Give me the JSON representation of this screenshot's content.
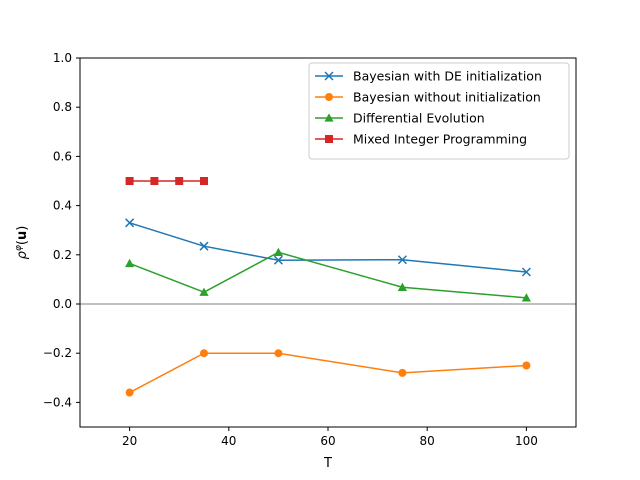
{
  "chart_data": {
    "type": "line",
    "title": "",
    "xlabel": "T",
    "ylabel_prefix": "ρ",
    "ylabel_sup": "φ",
    "ylabel_open": "(",
    "ylabel_bold": "u",
    "ylabel_close": ")",
    "xlim": [
      10,
      110
    ],
    "ylim": [
      -0.5,
      1.0
    ],
    "xticks": [
      20,
      40,
      60,
      80,
      100
    ],
    "xtick_labels": [
      "20",
      "40",
      "60",
      "80",
      "100"
    ],
    "yticks": [
      -0.4,
      -0.2,
      0.0,
      0.2,
      0.4,
      0.6,
      0.8,
      1.0
    ],
    "ytick_labels": [
      "−0.4",
      "−0.2",
      "0.0",
      "0.2",
      "0.4",
      "0.6",
      "0.8",
      "1.0"
    ],
    "reference_line_y": 0.0,
    "grid": false,
    "legend_position": "top-right",
    "series": [
      {
        "name": "Bayesian with DE initialization",
        "color": "#1f77b4",
        "marker": "x",
        "x": [
          20,
          35,
          50,
          75,
          100
        ],
        "y": [
          0.33,
          0.235,
          0.178,
          0.18,
          0.13
        ]
      },
      {
        "name": "Bayesian without initialization",
        "color": "#ff7f0e",
        "marker": "circle",
        "x": [
          20,
          35,
          50,
          75,
          100
        ],
        "y": [
          -0.36,
          -0.2,
          -0.2,
          -0.28,
          -0.25
        ]
      },
      {
        "name": "Differential Evolution",
        "color": "#2ca02c",
        "marker": "triangle",
        "x": [
          20,
          35,
          50,
          75,
          100
        ],
        "y": [
          0.165,
          0.048,
          0.21,
          0.068,
          0.025
        ]
      },
      {
        "name": "Mixed Integer Programming",
        "color": "#d62728",
        "marker": "square",
        "x": [
          20,
          25,
          30,
          35
        ],
        "y": [
          0.5,
          0.5,
          0.5,
          0.5
        ]
      }
    ]
  }
}
